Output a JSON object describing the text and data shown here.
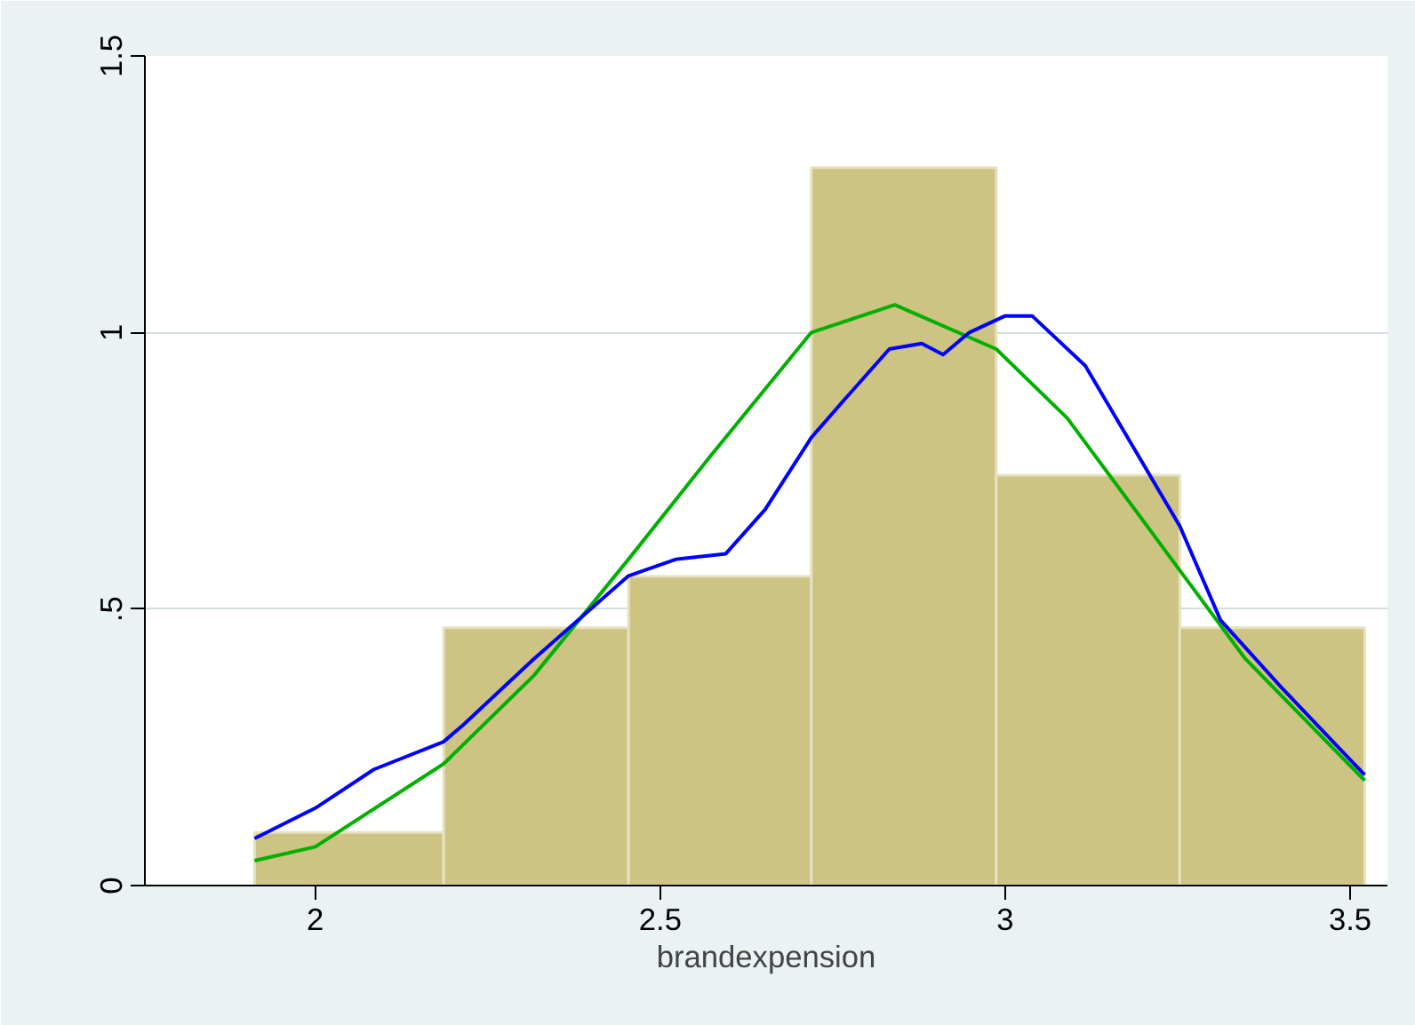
{
  "chart_data": {
    "type": "histogram",
    "xlabel": "brandexpension",
    "bins": [
      1.912,
      2.186,
      2.454,
      2.719,
      2.987,
      3.253,
      3.521
    ],
    "values": [
      0.096,
      0.466,
      0.559,
      1.298,
      0.742,
      0.466
    ],
    "color": "#cdc383",
    "series": [
      {
        "type": "line",
        "color": "#00b000",
        "x": [
          1.912,
          2.0,
          2.186,
          2.317,
          2.454,
          2.575,
          2.719,
          2.84,
          2.987,
          3.09,
          3.253,
          3.348,
          3.521
        ],
        "values": [
          0.045,
          0.07,
          0.22,
          0.38,
          0.59,
          0.78,
          1.0,
          1.05,
          0.97,
          0.845,
          0.57,
          0.41,
          0.19
        ]
      },
      {
        "type": "line",
        "color": "#0000ff",
        "x": [
          1.912,
          2.0,
          2.085,
          2.186,
          2.214,
          2.317,
          2.454,
          2.523,
          2.595,
          2.652,
          2.719,
          2.768,
          2.832,
          2.879,
          2.91,
          2.948,
          3.0,
          3.039,
          3.116,
          3.168,
          3.253,
          3.312,
          3.399,
          3.521
        ],
        "values": [
          0.085,
          0.14,
          0.21,
          0.26,
          0.29,
          0.41,
          0.56,
          0.59,
          0.6,
          0.68,
          0.81,
          0.88,
          0.97,
          0.98,
          0.96,
          1.0,
          1.03,
          1.03,
          0.94,
          0.83,
          0.65,
          0.48,
          0.36,
          0.2
        ]
      }
    ],
    "xlim": [
      1.753,
      3.554
    ],
    "ylim": [
      0,
      1.5
    ],
    "xticks": [
      2,
      2.5,
      3,
      3.5
    ],
    "yticks": [
      0,
      {
        "value": 0.5,
        "label": ".5"
      },
      1,
      1.5
    ],
    "grid": "y"
  }
}
